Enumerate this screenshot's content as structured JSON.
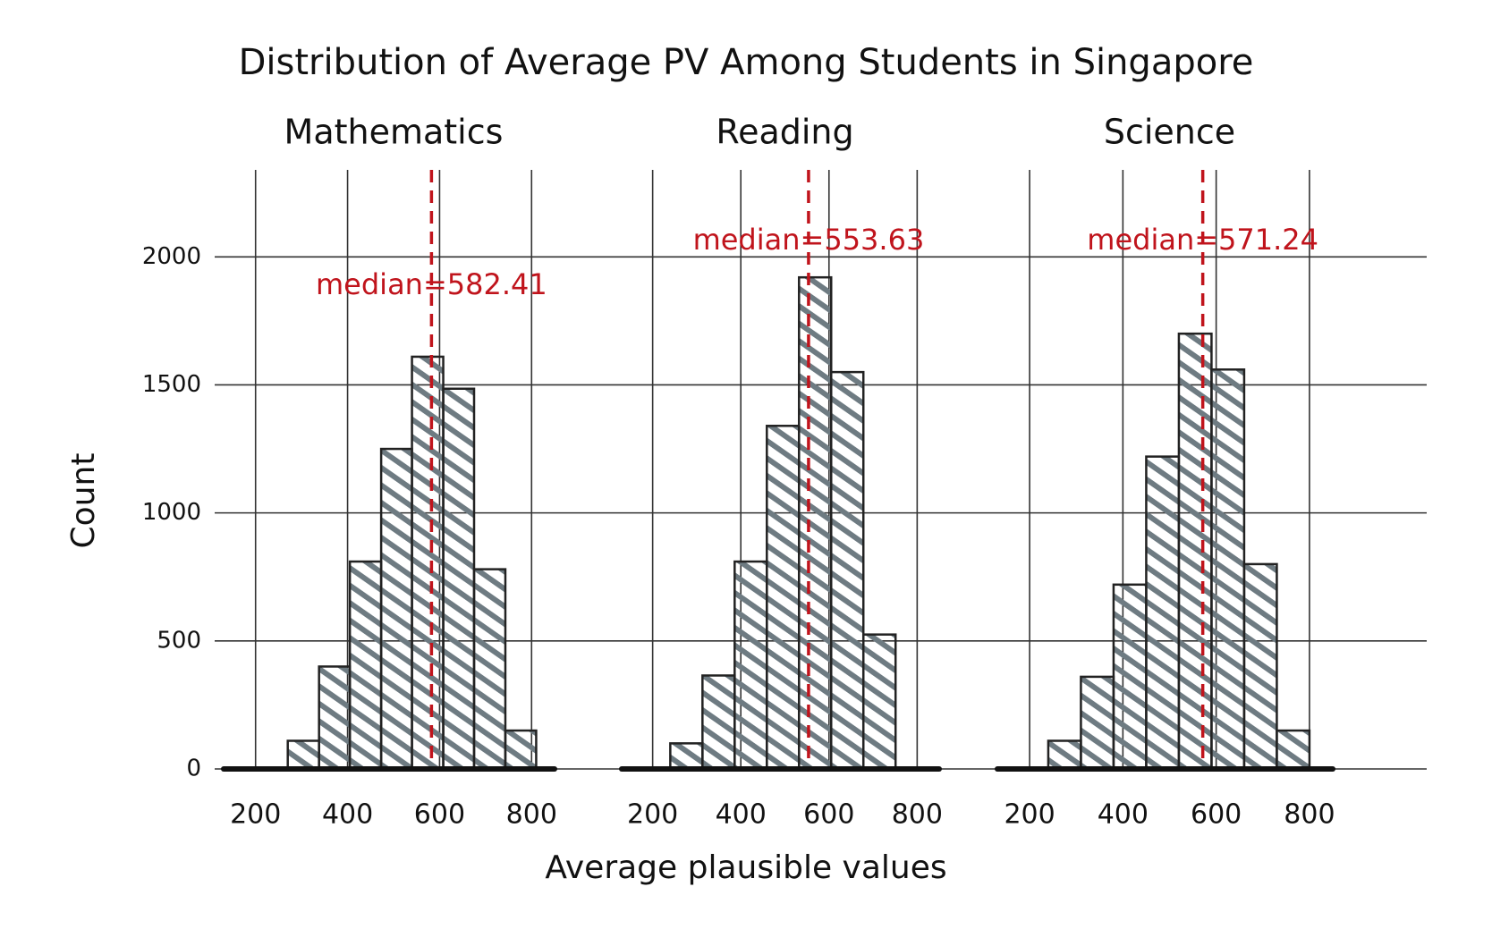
{
  "title": "Distribution of Average PV Among Students in Singapore",
  "x_label": "Average plausible values",
  "y_label": "Count",
  "chart_data": [
    {
      "type": "histogram",
      "subtitle": "Mathematics",
      "bins": [
        270,
        338,
        405,
        473,
        540,
        608,
        675,
        743,
        810
      ],
      "values": [
        110,
        400,
        810,
        1250,
        1610,
        1485,
        780,
        150
      ],
      "color": "#6e7b82",
      "median": 582.41,
      "median_label": "median=582.41",
      "median_color": "#c0141c",
      "xlim": [
        150,
        850
      ],
      "xticks": [
        200,
        400,
        600,
        800
      ],
      "ylim": [
        0,
        2200
      ],
      "yticks": [
        0,
        500,
        1000,
        1500,
        2000
      ],
      "grid": true
    },
    {
      "type": "histogram",
      "subtitle": "Reading",
      "bins": [
        240,
        313,
        386,
        459,
        532,
        605,
        678,
        751
      ],
      "values": [
        100,
        365,
        810,
        1340,
        1920,
        1550,
        525
      ],
      "color": "#6e7b82",
      "median": 553.63,
      "median_label": "median=553.63",
      "median_color": "#c0141c",
      "xlim": [
        150,
        850
      ],
      "xticks": [
        200,
        400,
        600,
        800
      ],
      "ylim": [
        0,
        2200
      ],
      "grid": true
    },
    {
      "type": "histogram",
      "subtitle": "Science",
      "bins": [
        240,
        310,
        380,
        450,
        520,
        590,
        660,
        730,
        800
      ],
      "values": [
        110,
        360,
        720,
        1220,
        1700,
        1560,
        800,
        150
      ],
      "color": "#6e7b82",
      "median": 571.24,
      "median_label": "median=571.24",
      "median_color": "#c0141c",
      "xlim": [
        150,
        850
      ],
      "xticks": [
        200,
        400,
        600,
        800
      ],
      "ylim": [
        0,
        2200
      ],
      "grid": true
    }
  ]
}
